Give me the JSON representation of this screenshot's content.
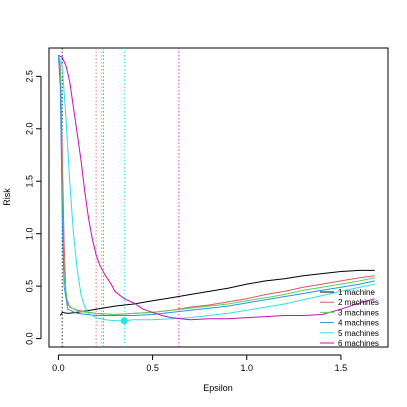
{
  "chart_data": {
    "type": "line",
    "title": "",
    "xlabel": "Epsilon",
    "ylabel": "Risk",
    "xlim": [
      -0.05,
      1.75
    ],
    "ylim": [
      -0.08,
      2.77
    ],
    "x_ticks": [
      "0.0",
      "0.5",
      "1.0",
      "1.5"
    ],
    "x_tick_values": [
      0,
      0.5,
      1.0,
      1.5
    ],
    "y_ticks": [
      "0.0",
      "0.5",
      "1.0",
      "1.5",
      "2.0",
      "2.5"
    ],
    "y_tick_values": [
      0,
      0.5,
      1.0,
      1.5,
      2.0,
      2.5
    ],
    "grid": false,
    "legend_position": "bottom-right",
    "series": [
      {
        "name": "1 machine",
        "color": "#000000",
        "x": [
          0.01,
          0.02,
          0.05,
          0.1,
          0.2,
          0.3,
          0.4,
          0.5,
          0.6,
          0.7,
          0.8,
          0.9,
          1.0,
          1.1,
          1.2,
          1.3,
          1.4,
          1.5,
          1.6,
          1.68
        ],
        "y": [
          0.22,
          0.25,
          0.24,
          0.25,
          0.28,
          0.31,
          0.33,
          0.36,
          0.39,
          0.42,
          0.45,
          0.48,
          0.52,
          0.55,
          0.57,
          0.6,
          0.62,
          0.64,
          0.65,
          0.65
        ]
      },
      {
        "name": "2 machines",
        "color": "#df536b",
        "x": [
          0.0,
          0.01,
          0.02,
          0.03,
          0.04,
          0.06,
          0.1,
          0.2,
          0.3,
          0.4,
          0.5,
          0.6,
          0.7,
          0.8,
          0.9,
          1.0,
          1.1,
          1.2,
          1.3,
          1.4,
          1.5,
          1.6,
          1.68
        ],
        "y": [
          2.7,
          2.6,
          1.8,
          0.9,
          0.4,
          0.3,
          0.27,
          0.24,
          0.23,
          0.24,
          0.25,
          0.27,
          0.3,
          0.32,
          0.35,
          0.38,
          0.42,
          0.45,
          0.49,
          0.52,
          0.55,
          0.58,
          0.6
        ]
      },
      {
        "name": "3 machines",
        "color": "#61d04f",
        "x": [
          0.0,
          0.01,
          0.02,
          0.03,
          0.05,
          0.1,
          0.2,
          0.3,
          0.4,
          0.5,
          0.6,
          0.7,
          0.8,
          0.9,
          1.0,
          1.1,
          1.2,
          1.3,
          1.4,
          1.5,
          1.6,
          1.68
        ],
        "y": [
          2.7,
          2.5,
          1.4,
          0.6,
          0.32,
          0.26,
          0.24,
          0.23,
          0.24,
          0.25,
          0.27,
          0.29,
          0.31,
          0.33,
          0.36,
          0.39,
          0.42,
          0.46,
          0.49,
          0.52,
          0.55,
          0.58
        ]
      },
      {
        "name": "4 machines",
        "color": "#2297e6",
        "x": [
          0.0,
          0.01,
          0.02,
          0.03,
          0.05,
          0.1,
          0.2,
          0.3,
          0.4,
          0.5,
          0.6,
          0.7,
          0.8,
          0.9,
          1.0,
          1.1,
          1.2,
          1.3,
          1.4,
          1.5,
          1.6,
          1.68
        ],
        "y": [
          2.7,
          2.4,
          1.2,
          0.5,
          0.28,
          0.24,
          0.22,
          0.22,
          0.22,
          0.23,
          0.25,
          0.27,
          0.29,
          0.31,
          0.34,
          0.37,
          0.4,
          0.43,
          0.46,
          0.49,
          0.52,
          0.55
        ]
      },
      {
        "name": "5 machines",
        "color": "#28e2e5",
        "x": [
          0.0,
          0.02,
          0.04,
          0.06,
          0.08,
          0.1,
          0.12,
          0.14,
          0.16,
          0.2,
          0.25,
          0.3,
          0.35,
          0.4,
          0.5,
          0.6,
          0.7,
          0.8,
          0.9,
          1.0,
          1.1,
          1.2,
          1.3,
          1.4,
          1.5,
          1.6,
          1.68
        ],
        "y": [
          2.7,
          2.6,
          2.1,
          1.5,
          1.0,
          0.65,
          0.42,
          0.3,
          0.24,
          0.2,
          0.18,
          0.17,
          0.17,
          0.18,
          0.18,
          0.19,
          0.2,
          0.22,
          0.24,
          0.27,
          0.3,
          0.33,
          0.37,
          0.41,
          0.45,
          0.49,
          0.52
        ]
      },
      {
        "name": "6 machines",
        "color": "#cd0bbc",
        "x": [
          0.0,
          0.02,
          0.04,
          0.06,
          0.08,
          0.1,
          0.12,
          0.14,
          0.16,
          0.18,
          0.2,
          0.22,
          0.25,
          0.28,
          0.3,
          0.35,
          0.4,
          0.45,
          0.5,
          0.55,
          0.6,
          0.65,
          0.7,
          0.8,
          0.9,
          1.0,
          1.1,
          1.2,
          1.3,
          1.4,
          1.5,
          1.6,
          1.68
        ],
        "y": [
          2.7,
          2.68,
          2.6,
          2.45,
          2.2,
          1.95,
          1.7,
          1.4,
          1.15,
          0.95,
          0.8,
          0.7,
          0.6,
          0.52,
          0.45,
          0.38,
          0.34,
          0.28,
          0.25,
          0.22,
          0.2,
          0.19,
          0.18,
          0.19,
          0.19,
          0.2,
          0.21,
          0.22,
          0.22,
          0.23,
          0.28,
          0.34,
          0.38
        ]
      }
    ],
    "vertical_lines": [
      {
        "x": 0.02,
        "color": "#000000"
      },
      {
        "x": 0.2,
        "color": "#df536b"
      },
      {
        "x": 0.23,
        "color": "#61d04f"
      },
      {
        "x": 0.24,
        "color": "#2297e6"
      },
      {
        "x": 0.35,
        "color": "#28e2e5"
      },
      {
        "x": 0.64,
        "color": "#cd0bbc"
      }
    ],
    "highlight_point": {
      "x": 0.35,
      "y": 0.17,
      "color": "#28e2e5"
    }
  }
}
